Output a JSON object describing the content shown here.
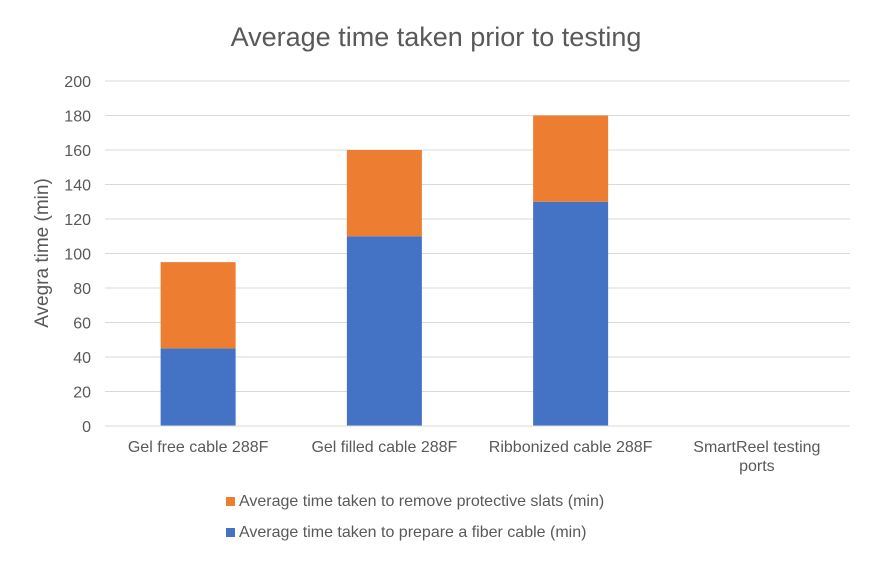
{
  "chart_data": {
    "type": "bar",
    "stacked": true,
    "title": "Average time taken prior to testing",
    "xlabel": "",
    "ylabel": "Avegra time (min)",
    "ylim": [
      0,
      200
    ],
    "yticks": [
      0,
      20,
      40,
      60,
      80,
      100,
      120,
      140,
      160,
      180,
      200
    ],
    "grid": true,
    "legend_position": "bottom",
    "categories": [
      [
        "Gel free cable 288F"
      ],
      [
        "Gel filled cable 288F"
      ],
      [
        "Ribbonized cable 288F"
      ],
      [
        "SmartReel testing",
        "ports"
      ]
    ],
    "series": [
      {
        "name": "Average time taken to prepare a fiber cable (min)",
        "color": "#4472C4",
        "values": [
          45,
          110,
          130,
          0
        ]
      },
      {
        "name": "Average time taken to remove protective slats (min)",
        "color": "#ED7D31",
        "values": [
          50,
          50,
          50,
          0
        ]
      }
    ],
    "legend_order": [
      1,
      0
    ]
  },
  "colors": {
    "grid": "#D9D9D9",
    "text": "#595959",
    "axis": "#D9D9D9"
  }
}
